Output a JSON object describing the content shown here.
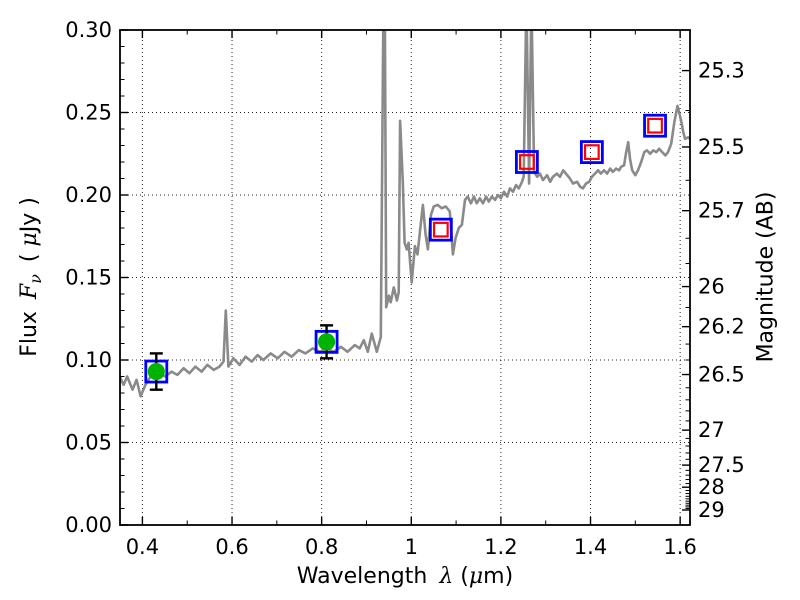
{
  "figure": {
    "background": "#ffffff"
  },
  "labels": {
    "xlabel": {
      "word": "Wavelength",
      "lambda": "λ",
      "paren_open": "(",
      "mu": "μ",
      "paren_close": "m)"
    },
    "ylabel_left": {
      "word": "Flux",
      "F": "F",
      "nu": "ν",
      "paren_open": "( ",
      "mu": "μ",
      "unit": "Jy )"
    },
    "ylabel_right": "Magnitude (AB)"
  },
  "chart_data": {
    "type": "line",
    "title": "",
    "xlabel": "Wavelength λ (μm)",
    "ylabel_left": "Flux Fν ( μJy )",
    "ylabel_right": "Magnitude (AB)",
    "xlim": [
      0.35,
      1.622
    ],
    "ylim_flux": [
      0.0,
      0.3
    ],
    "grid": "dotted, major ticks, both axes",
    "legend": "none",
    "x_ticks": {
      "values": [
        0.4,
        0.6,
        0.8,
        1.0,
        1.2,
        1.4,
        1.6
      ],
      "labels": [
        "0.4",
        "0.6",
        "0.8",
        "1",
        "1.2",
        "1.4",
        "1.6"
      ],
      "minor": [
        0.5,
        0.7,
        0.9,
        1.1,
        1.3,
        1.5
      ]
    },
    "y_ticks_flux": {
      "values": [
        0.0,
        0.05,
        0.1,
        0.15,
        0.2,
        0.25,
        0.3
      ],
      "labels": [
        "0.00",
        "0.05",
        "0.10",
        "0.15",
        "0.20",
        "0.25",
        "0.30"
      ]
    },
    "y_ticks_mag": {
      "labels": [
        "25.3",
        "25.5",
        "25.7",
        "26",
        "26.2",
        "26.5",
        "27",
        "27.5",
        "28",
        "29"
      ],
      "values": [
        25.3,
        25.5,
        25.7,
        26,
        26.2,
        26.5,
        27,
        27.5,
        28,
        29
      ],
      "flux_positions": [
        0.2754,
        0.2291,
        0.1905,
        0.1445,
        0.1202,
        0.0912,
        0.0575,
        0.0363,
        0.0229,
        0.0091
      ]
    },
    "series": [
      {
        "name": "model-spectrum",
        "type": "line",
        "color": "#8a8a8a",
        "linewidth": 2.6,
        "points": [
          [
            0.349,
            0.09
          ],
          [
            0.358,
            0.085
          ],
          [
            0.366,
            0.09
          ],
          [
            0.378,
            0.082
          ],
          [
            0.387,
            0.088
          ],
          [
            0.396,
            0.078
          ],
          [
            0.407,
            0.085
          ],
          [
            0.416,
            0.089
          ],
          [
            0.427,
            0.092
          ],
          [
            0.438,
            0.092
          ],
          [
            0.451,
            0.09
          ],
          [
            0.465,
            0.093
          ],
          [
            0.478,
            0.091
          ],
          [
            0.492,
            0.095
          ],
          [
            0.505,
            0.092
          ],
          [
            0.518,
            0.096
          ],
          [
            0.532,
            0.093
          ],
          [
            0.545,
            0.097
          ],
          [
            0.559,
            0.094
          ],
          [
            0.572,
            0.096
          ],
          [
            0.581,
            0.099
          ],
          [
            0.586,
            0.13
          ],
          [
            0.592,
            0.096
          ],
          [
            0.603,
            0.101
          ],
          [
            0.617,
            0.097
          ],
          [
            0.63,
            0.102
          ],
          [
            0.644,
            0.099
          ],
          [
            0.657,
            0.103
          ],
          [
            0.67,
            0.1
          ],
          [
            0.686,
            0.104
          ],
          [
            0.702,
            0.101
          ],
          [
            0.717,
            0.105
          ],
          [
            0.733,
            0.102
          ],
          [
            0.749,
            0.106
          ],
          [
            0.764,
            0.104
          ],
          [
            0.78,
            0.107
          ],
          [
            0.796,
            0.105
          ],
          [
            0.811,
            0.107
          ],
          [
            0.827,
            0.105
          ],
          [
            0.843,
            0.108
          ],
          [
            0.858,
            0.105
          ],
          [
            0.874,
            0.109
          ],
          [
            0.885,
            0.107
          ],
          [
            0.894,
            0.112
          ],
          [
            0.903,
            0.105
          ],
          [
            0.912,
            0.116
          ],
          [
            0.923,
            0.105
          ],
          [
            0.932,
            0.114
          ],
          [
            0.938,
            0.32
          ],
          [
            0.941,
            0.32
          ],
          [
            0.944,
            0.132
          ],
          [
            0.95,
            0.139
          ],
          [
            0.954,
            0.135
          ],
          [
            0.961,
            0.144
          ],
          [
            0.968,
            0.136
          ],
          [
            0.972,
            0.141
          ],
          [
            0.975,
            0.245
          ],
          [
            0.981,
            0.208
          ],
          [
            0.985,
            0.171
          ],
          [
            0.99,
            0.167
          ],
          [
            0.994,
            0.171
          ],
          [
            1.001,
            0.147
          ],
          [
            1.008,
            0.169
          ],
          [
            1.014,
            0.164
          ],
          [
            1.021,
            0.182
          ],
          [
            1.026,
            0.194
          ],
          [
            1.032,
            0.176
          ],
          [
            1.037,
            0.167
          ],
          [
            1.044,
            0.188
          ],
          [
            1.05,
            0.193
          ],
          [
            1.059,
            0.194
          ],
          [
            1.068,
            0.192
          ],
          [
            1.077,
            0.193
          ],
          [
            1.086,
            0.19
          ],
          [
            1.093,
            0.164
          ],
          [
            1.099,
            0.174
          ],
          [
            1.106,
            0.18
          ],
          [
            1.113,
            0.182
          ],
          [
            1.12,
            0.197
          ],
          [
            1.126,
            0.199
          ],
          [
            1.133,
            0.195
          ],
          [
            1.14,
            0.199
          ],
          [
            1.146,
            0.195
          ],
          [
            1.153,
            0.198
          ],
          [
            1.16,
            0.195
          ],
          [
            1.167,
            0.199
          ],
          [
            1.173,
            0.196
          ],
          [
            1.18,
            0.199
          ],
          [
            1.187,
            0.197
          ],
          [
            1.193,
            0.2
          ],
          [
            1.2,
            0.198
          ],
          [
            1.207,
            0.202
          ],
          [
            1.214,
            0.199
          ],
          [
            1.22,
            0.204
          ],
          [
            1.227,
            0.202
          ],
          [
            1.234,
            0.206
          ],
          [
            1.24,
            0.204
          ],
          [
            1.247,
            0.208
          ],
          [
            1.251,
            0.211
          ],
          [
            1.257,
            0.32
          ],
          [
            1.263,
            0.207
          ],
          [
            1.268,
            0.32
          ],
          [
            1.274,
            0.214
          ],
          [
            1.281,
            0.211
          ],
          [
            1.287,
            0.213
          ],
          [
            1.294,
            0.209
          ],
          [
            1.303,
            0.212
          ],
          [
            1.31,
            0.208
          ],
          [
            1.316,
            0.211
          ],
          [
            1.325,
            0.213
          ],
          [
            1.332,
            0.211
          ],
          [
            1.339,
            0.215
          ],
          [
            1.345,
            0.213
          ],
          [
            1.354,
            0.21
          ],
          [
            1.361,
            0.207
          ],
          [
            1.37,
            0.208
          ],
          [
            1.377,
            0.205
          ],
          [
            1.383,
            0.204
          ],
          [
            1.39,
            0.207
          ],
          [
            1.397,
            0.208
          ],
          [
            1.403,
            0.211
          ],
          [
            1.41,
            0.213
          ],
          [
            1.417,
            0.215
          ],
          [
            1.423,
            0.213
          ],
          [
            1.43,
            0.215
          ],
          [
            1.437,
            0.213
          ],
          [
            1.444,
            0.216
          ],
          [
            1.45,
            0.214
          ],
          [
            1.457,
            0.216
          ],
          [
            1.464,
            0.215
          ],
          [
            1.468,
            0.217
          ],
          [
            1.475,
            0.218
          ],
          [
            1.479,
            0.225
          ],
          [
            1.484,
            0.232
          ],
          [
            1.488,
            0.222
          ],
          [
            1.493,
            0.215
          ],
          [
            1.5,
            0.212
          ],
          [
            1.506,
            0.215
          ],
          [
            1.513,
            0.22
          ],
          [
            1.52,
            0.226
          ],
          [
            1.526,
            0.227
          ],
          [
            1.533,
            0.225
          ],
          [
            1.54,
            0.227
          ],
          [
            1.547,
            0.226
          ],
          [
            1.553,
            0.228
          ],
          [
            1.56,
            0.226
          ],
          [
            1.567,
            0.224
          ],
          [
            1.573,
            0.226
          ],
          [
            1.58,
            0.231
          ],
          [
            1.587,
            0.244
          ],
          [
            1.594,
            0.254
          ],
          [
            1.598,
            0.25
          ],
          [
            1.603,
            0.244
          ],
          [
            1.607,
            0.238
          ],
          [
            1.611,
            0.234
          ],
          [
            1.618,
            0.235
          ],
          [
            1.622,
            0.234
          ]
        ]
      },
      {
        "name": "optical-photometry",
        "type": "scatter",
        "marker": "open-blue-square-with-filled-green-circle-and-black-errorbar",
        "square_color": "#0000ff",
        "fill_color": "#00b300",
        "errorbar_color": "#000000",
        "points": [
          {
            "x": 0.431,
            "y": 0.093,
            "yerr": 0.011
          },
          {
            "x": 0.811,
            "y": 0.111,
            "yerr": 0.01
          }
        ]
      },
      {
        "name": "nir-photometry",
        "type": "scatter",
        "marker": "open-blue-square-with-open-red-square",
        "square_color": "#0000ff",
        "inner_color": "#ff0000",
        "points": [
          {
            "x": 1.066,
            "y": 0.179
          },
          {
            "x": 1.258,
            "y": 0.22
          },
          {
            "x": 1.403,
            "y": 0.226
          },
          {
            "x": 1.544,
            "y": 0.242
          }
        ]
      }
    ]
  }
}
